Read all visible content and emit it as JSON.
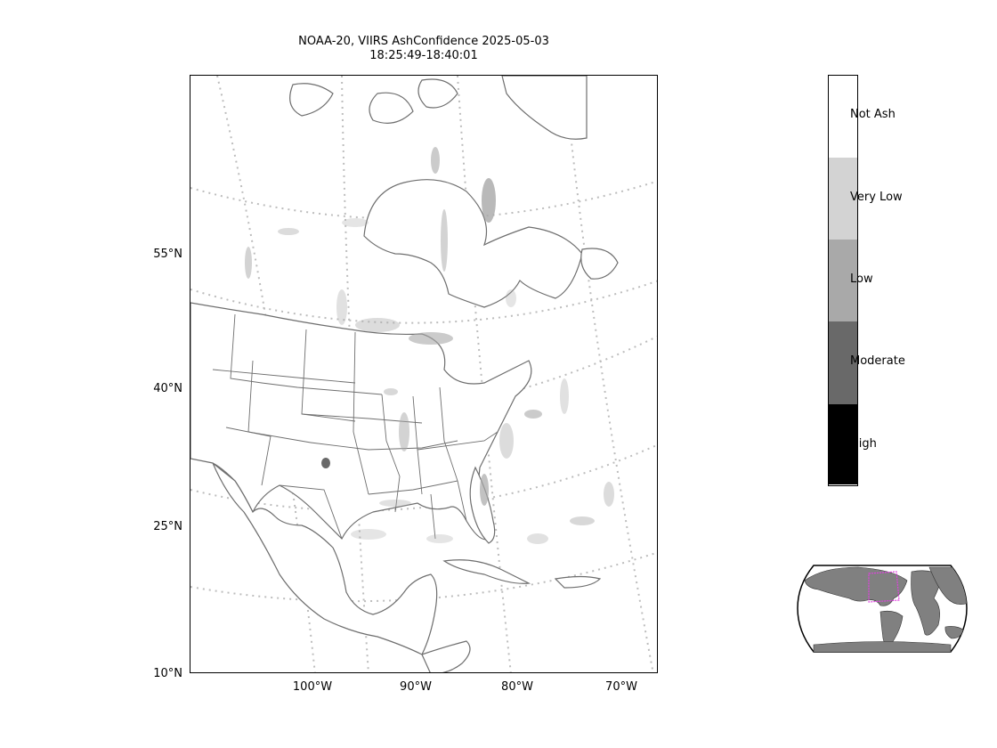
{
  "title": {
    "line1": "NOAA-20, VIIRS AshConfidence 2025-05-03",
    "line2": "18:25:49-18:40:01"
  },
  "map": {
    "latitude_labels": [
      "55°N",
      "40°N",
      "25°N",
      "10°N"
    ],
    "longitude_labels": [
      "100°W",
      "90°W",
      "80°W",
      "70°W"
    ],
    "land_fill_color": "#ffffff",
    "coastline_color": "#6e6e6e",
    "graticule_color": "#bdbdbd",
    "ash_color": "#a8a8a8"
  },
  "colorbar": {
    "categories": [
      {
        "label": "Not Ash",
        "color": "#ffffff"
      },
      {
        "label": "Very Low",
        "color": "#d3d3d3"
      },
      {
        "label": "Low",
        "color": "#a9a9a9"
      },
      {
        "label": "Moderate",
        "color": "#696969"
      },
      {
        "label": "High",
        "color": "#000000"
      }
    ]
  },
  "inset": {
    "land_color": "#808080",
    "ocean_color": "#ffffff",
    "extent_box_color": "#e040e0"
  }
}
